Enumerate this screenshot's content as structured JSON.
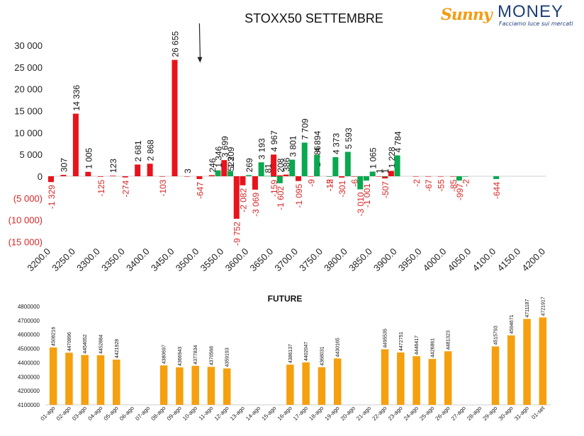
{
  "logo": {
    "brand_part1": "Sunny",
    "brand_part2": "MONEY",
    "tagline": "Facciamo luce sui mercati"
  },
  "colors": {
    "call": "#e8131b",
    "put": "#0aa84f",
    "negative_label": "#d92626",
    "future": "#f5a00f",
    "axis_text": "#222222"
  },
  "chart_data": [
    {
      "type": "bar",
      "title": "STOXX50 SETTEMBRE",
      "xlabel": "",
      "ylabel": "",
      "ylim": [
        -15000,
        30000
      ],
      "yticks": [
        {
          "value": 30000,
          "label": "30 000"
        },
        {
          "value": 25000,
          "label": "25 000"
        },
        {
          "value": 20000,
          "label": "20 000"
        },
        {
          "value": 15000,
          "label": "15 000"
        },
        {
          "value": 10000,
          "label": "10 000"
        },
        {
          "value": 5000,
          "label": "5 000"
        },
        {
          "value": 0,
          "label": "0"
        },
        {
          "value": -5000,
          "label": "(5 000)"
        },
        {
          "value": -10000,
          "label": "(10 000)"
        },
        {
          "value": -15000,
          "label": "(15 000)"
        }
      ],
      "xlim": [
        3200,
        4200
      ],
      "xticks": [
        "3200.0",
        "3250.0",
        "3300.0",
        "3350.0",
        "3400.0",
        "3450.0",
        "3500.0",
        "3550.0",
        "3600.0",
        "3650.0",
        "3700.0",
        "3750.0",
        "3800.0",
        "3850.0",
        "3900.0",
        "3950.0",
        "4000.0",
        "4050.0",
        "4100.0",
        "4150.0",
        "4200.0"
      ],
      "grid": false,
      "legend": "none",
      "annotation": {
        "type": "arrow",
        "x": 3500,
        "from": 35000,
        "to": 26000
      },
      "series": [
        {
          "color": "#e8131b",
          "points": [
            {
              "strike": 3200,
              "value": -1329,
              "label": "-1 329"
            },
            {
              "strike": 3225,
              "value": 307,
              "label": "307"
            },
            {
              "strike": 3250,
              "value": 14336,
              "label": "14 336"
            },
            {
              "strike": 3275,
              "value": 1005,
              "label": "1 005"
            },
            {
              "strike": 3300,
              "value": -125,
              "label": "-125"
            },
            {
              "strike": 3325,
              "value": 123,
              "label": "123"
            },
            {
              "strike": 3350,
              "value": -274,
              "label": "-274"
            },
            {
              "strike": 3375,
              "value": 2681,
              "label": "2 681"
            },
            {
              "strike": 3400,
              "value": 2868,
              "label": "2 868"
            },
            {
              "strike": 3425,
              "value": -103,
              "label": "-103"
            },
            {
              "strike": 3450,
              "value": 26655,
              "label": "26 655"
            },
            {
              "strike": 3475,
              "value": 3,
              "label": "3"
            },
            {
              "strike": 3500,
              "value": -647,
              "label": "-647"
            },
            {
              "strike": 3525,
              "value": 246,
              "label": "246"
            },
            {
              "strike": 3550,
              "value": 3699,
              "label": "3 699"
            },
            {
              "strike": 3562.5,
              "value": 523,
              "label": "523"
            },
            {
              "strike": 3575,
              "value": -9752,
              "label": "-9 752"
            },
            {
              "strike": 3587.5,
              "value": -2082,
              "label": "-2 082"
            },
            {
              "strike": 3612.5,
              "value": -3069,
              "label": "-3 069"
            },
            {
              "strike": 3650,
              "value": 4967,
              "label": "4 967"
            },
            {
              "strike": 3662.5,
              "value": 208,
              "label": "208"
            },
            {
              "strike": 3675,
              "value": 386,
              "label": "386"
            },
            {
              "strike": 3700,
              "value": -1095,
              "label": "-1 095"
            },
            {
              "strike": 3725,
              "value": -9,
              "label": "-9"
            },
            {
              "strike": 3737.5,
              "value": 1486,
              "label": "1 486"
            },
            {
              "strike": 3762.5,
              "value": -15,
              "label": "-15"
            },
            {
              "strike": 3787.5,
              "value": -301,
              "label": "-301"
            },
            {
              "strike": 3812.5,
              "value": -6,
              "label": "-6"
            },
            {
              "strike": 3862.5,
              "value": 1,
              "label": "1"
            },
            {
              "strike": 3875,
              "value": -507,
              "label": "-507"
            },
            {
              "strike": 3887.5,
              "value": 1228,
              "label": "1 228"
            },
            {
              "strike": 3937.5,
              "value": -2,
              "label": "-2"
            },
            {
              "strike": 3962.5,
              "value": -67,
              "label": "-67"
            },
            {
              "strike": 3987.5,
              "value": -55,
              "label": "-55"
            },
            {
              "strike": 4012.5,
              "value": -85,
              "label": "-85"
            }
          ]
        },
        {
          "color": "#0aa84f",
          "points": [
            {
              "strike": 3537.5,
              "value": 1346,
              "label": "1 346"
            },
            {
              "strike": 3562.5,
              "value": 1209,
              "label": "1 209"
            },
            {
              "strike": 3600,
              "value": 269,
              "label": "269"
            },
            {
              "strike": 3625,
              "value": 3193,
              "label": "3 193"
            },
            {
              "strike": 3637.5,
              "value": 81,
              "label": "81"
            },
            {
              "strike": 3650,
              "value": -159,
              "label": "-159"
            },
            {
              "strike": 3662.5,
              "value": -1602,
              "label": "-1 602"
            },
            {
              "strike": 3687.5,
              "value": 3801,
              "label": "3 801"
            },
            {
              "strike": 3712.5,
              "value": 7709,
              "label": "7 709"
            },
            {
              "strike": 3737.5,
              "value": 4894,
              "label": "4 894"
            },
            {
              "strike": 3762.5,
              "value": -2,
              "label": "-2"
            },
            {
              "strike": 3775,
              "value": 4373,
              "label": "4 373"
            },
            {
              "strike": 3800,
              "value": 5593,
              "label": "5 593"
            },
            {
              "strike": 3825,
              "value": -3010,
              "label": "-3 010"
            },
            {
              "strike": 3837.5,
              "value": -1001,
              "label": "-1 001"
            },
            {
              "strike": 3850,
              "value": 1065,
              "label": "1 065"
            },
            {
              "strike": 3875,
              "value": 1,
              "label": "1"
            },
            {
              "strike": 3900,
              "value": 4784,
              "label": "4 784"
            },
            {
              "strike": 4025,
              "value": -997,
              "label": "-997"
            },
            {
              "strike": 4037.5,
              "value": -2,
              "label": "-2"
            },
            {
              "strike": 4100,
              "value": -644,
              "label": "-644"
            }
          ]
        }
      ]
    },
    {
      "type": "bar",
      "title": "FUTURE",
      "xlabel": "",
      "ylabel": "",
      "ylim": [
        4100000,
        4800000
      ],
      "yticks": [
        "4100000",
        "4200000",
        "4300000",
        "4400000",
        "4500000",
        "4600000",
        "4700000",
        "4800000"
      ],
      "grid": false,
      "legend": "none",
      "categories": [
        "01-ago",
        "02-ago",
        "03-ago",
        "04-ago",
        "05-ago",
        "06-ago",
        "07-ago",
        "08-ago",
        "09-ago",
        "10-ago",
        "11-ago",
        "12-ago",
        "13-ago",
        "14-ago",
        "15-ago",
        "16-ago",
        "17-ago",
        "18-ago",
        "19-ago",
        "20-ago",
        "21-ago",
        "22-ago",
        "23-ago",
        "24-ago",
        "25-ago",
        "26-ago",
        "27-ago",
        "28-ago",
        "29-ago",
        "30-ago",
        "31-ago",
        "01-set"
      ],
      "values": [
        4508216,
        4470896,
        4454652,
        4452884,
        4421928,
        null,
        null,
        4380697,
        4366943,
        4377834,
        4370568,
        4359193,
        null,
        null,
        null,
        4386137,
        4402047,
        4368031,
        4430165,
        null,
        null,
        4495535,
        4472751,
        4446417,
        4426861,
        4481323,
        null,
        null,
        4515793,
        4594671,
        4711187,
        4721917
      ],
      "value_labels": [
        "4508216",
        "4470896",
        "4454652",
        "4452884",
        "4421928",
        "",
        "",
        "4380697",
        "4366943",
        "4377834",
        "4370568",
        "4359193",
        "",
        "",
        "",
        "4386137",
        "4402047",
        "4368031",
        "4430165",
        "",
        "",
        "4495535",
        "4472751",
        "4446417",
        "4426861",
        "4481323",
        "",
        "",
        "4515793",
        "4594671",
        "4711187",
        "4721917"
      ]
    }
  ]
}
